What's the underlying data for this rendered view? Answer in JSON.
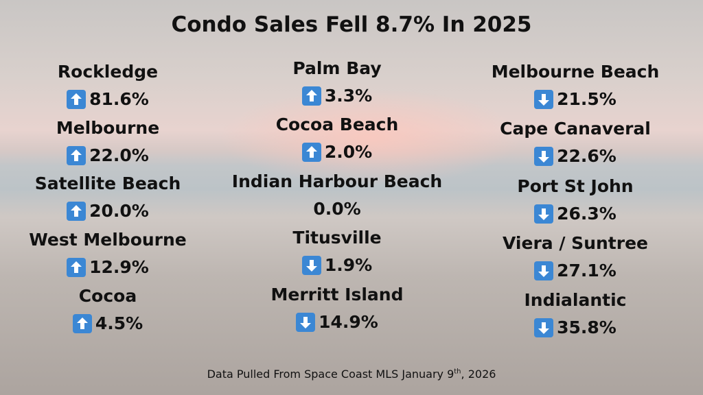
{
  "title": "Condo Sales Fell 8.7% In 2025",
  "columns": [
    [
      {
        "name": "Rockledge",
        "change": "81.6%",
        "direction": "up"
      },
      {
        "name": "Melbourne",
        "change": "22.0%",
        "direction": "up"
      },
      {
        "name": "Satellite Beach",
        "change": "20.0%",
        "direction": "up"
      },
      {
        "name": "West Melbourne",
        "change": "12.9%",
        "direction": "up"
      },
      {
        "name": "Cocoa",
        "change": "4.5%",
        "direction": "up"
      }
    ],
    [
      {
        "name": "Palm Bay",
        "change": "3.3%",
        "direction": "up"
      },
      {
        "name": "Cocoa Beach",
        "change": "2.0%",
        "direction": "up"
      },
      {
        "name": "Indian Harbour Beach",
        "change": "0.0%"
      },
      {
        "name": "Titusville",
        "change": "1.9%",
        "direction": "down"
      },
      {
        "name": "Merritt Island",
        "change": "14.9%",
        "direction": "down"
      }
    ],
    [
      {
        "name": "Melbourne Beach",
        "change": "21.5%",
        "direction": "down"
      },
      {
        "name": "Cape Canaveral",
        "change": "22.6%",
        "direction": "down"
      },
      {
        "name": "Port St John",
        "change": "26.3%",
        "direction": "down"
      },
      {
        "name": "Viera / Suntree",
        "change": "27.1%",
        "direction": "down"
      },
      {
        "name": "Indialantic",
        "change": "35.8%",
        "direction": "down"
      }
    ]
  ],
  "footer": {
    "main": "Data Pulled From Space Coast MLS January 9",
    "sup": "th",
    "end": ", 2026"
  }
}
